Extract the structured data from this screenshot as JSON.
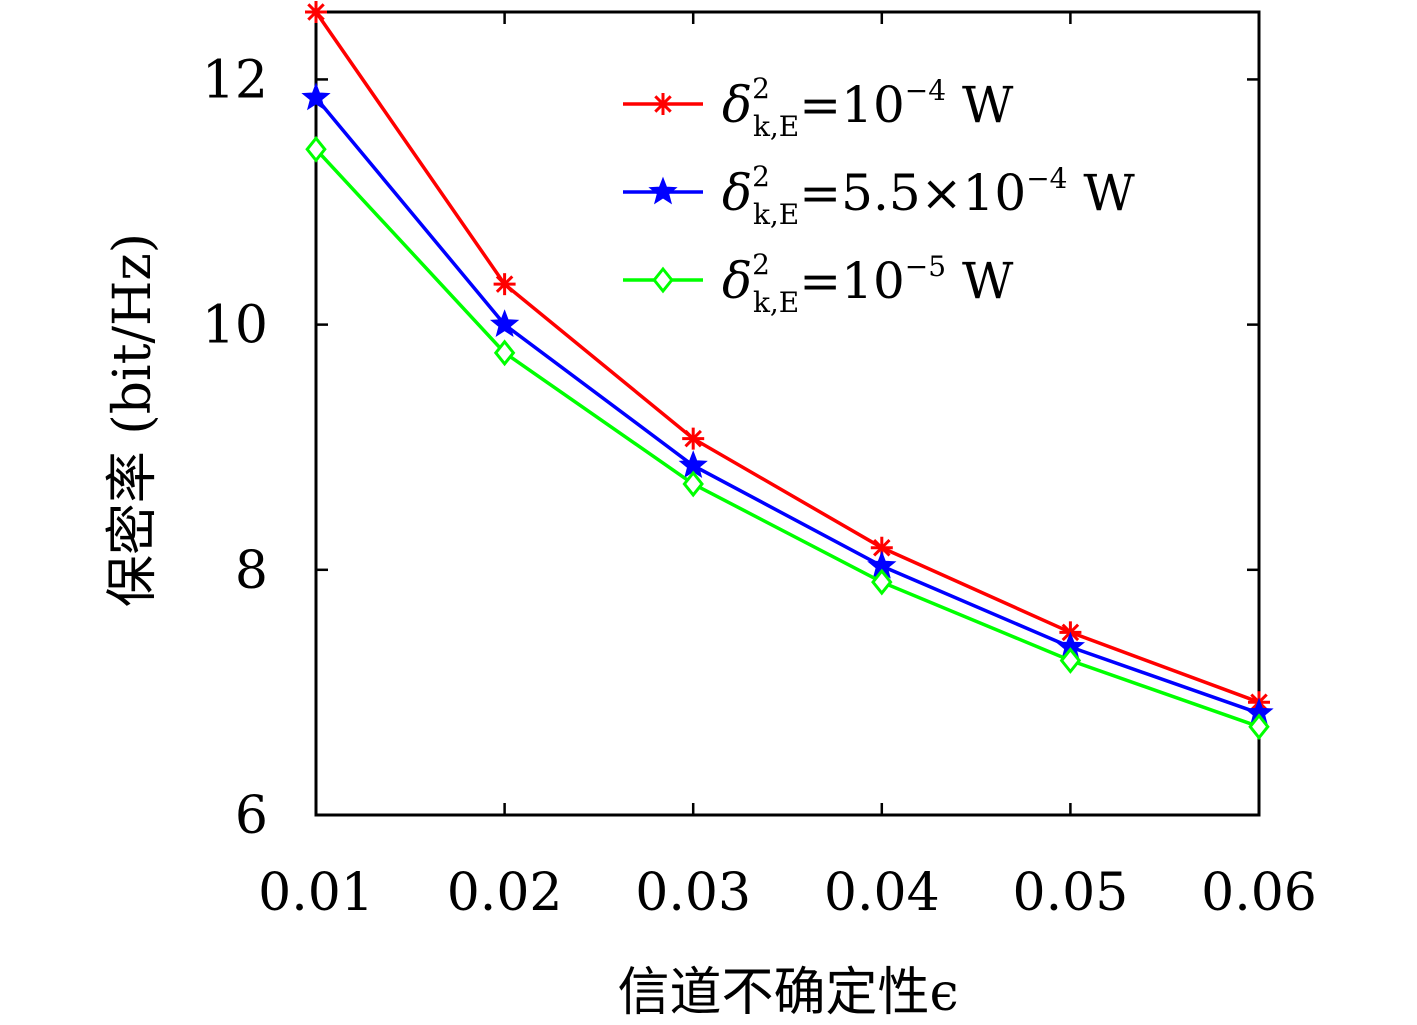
{
  "chart_data": {
    "type": "line",
    "x": [
      0.01,
      0.02,
      0.03,
      0.04,
      0.05,
      0.06
    ],
    "x_tick_labels": [
      "0.01",
      "0.02",
      "0.03",
      "0.04",
      "0.05",
      "0.06"
    ],
    "y_ticks": [
      6,
      8,
      10,
      12
    ],
    "y_tick_labels": [
      "6",
      "8",
      "10",
      "12"
    ],
    "xlim": [
      0.01,
      0.06
    ],
    "ylim": [
      6,
      12.55
    ],
    "xlabel": "信道不确定性ϵ",
    "ylabel": "保密率 (bit/Hz)",
    "grid": false,
    "legend_position": "top-right",
    "series": [
      {
        "name": "δ²k,E=10⁻⁴ W",
        "legend": {
          "pre": "=10",
          "exp": "−4",
          "post": " W"
        },
        "color": "#ff0000",
        "marker": "asterisk",
        "values": [
          12.55,
          10.33,
          9.07,
          8.18,
          7.49,
          6.92
        ]
      },
      {
        "name": "δ²k,E=5.5×10⁻⁴ W",
        "legend": {
          "pre": "=5.5×10",
          "exp": "−4",
          "post": " W"
        },
        "color": "#0000ff",
        "marker": "star",
        "values": [
          11.85,
          10.0,
          8.85,
          8.03,
          7.37,
          6.83
        ]
      },
      {
        "name": "δ²k,E=10⁻⁵ W",
        "legend": {
          "pre": "=10",
          "exp": "−5",
          "post": " W"
        },
        "color": "#00ff00",
        "marker": "diamond",
        "values": [
          11.43,
          9.77,
          8.7,
          7.9,
          7.26,
          6.72
        ]
      }
    ]
  }
}
